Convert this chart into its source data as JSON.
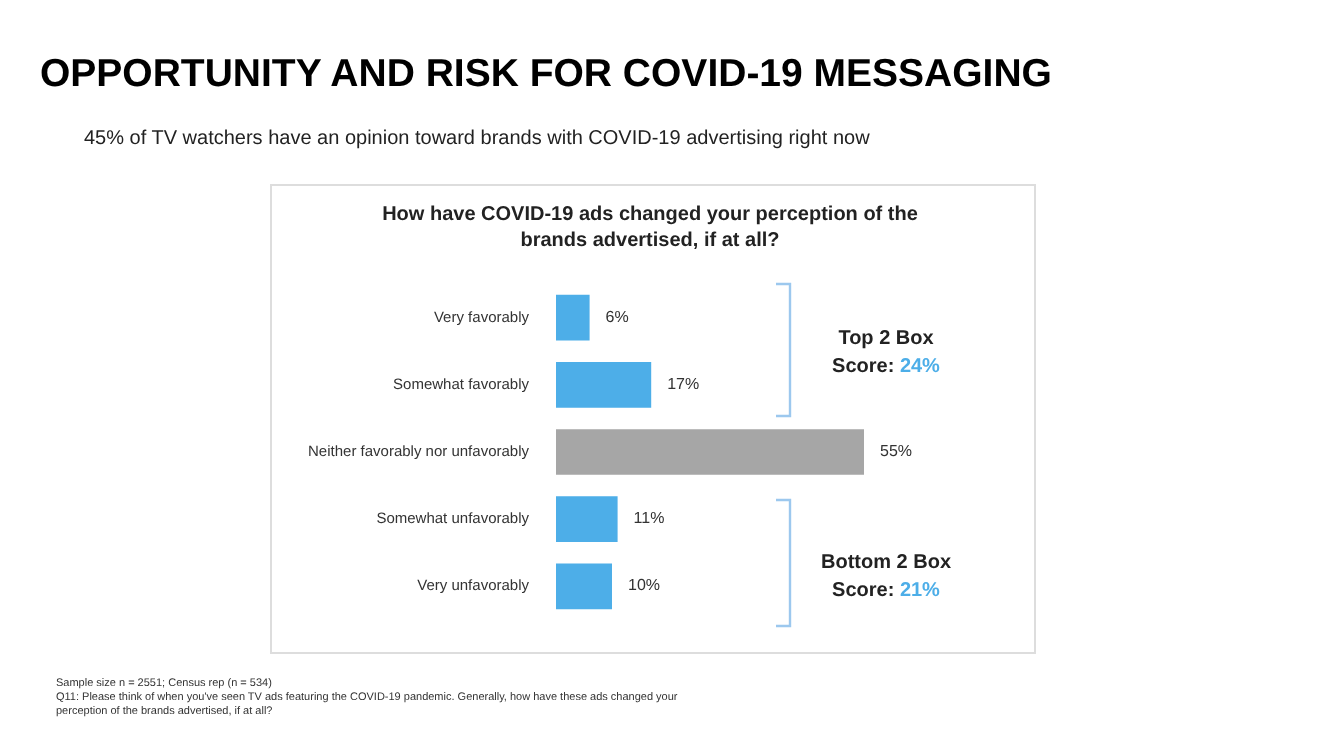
{
  "chart_data": {
    "type": "bar",
    "orientation": "horizontal",
    "title": "OPPORTUNITY AND RISK FOR COVID-19 MESSAGING",
    "subtitle": "45% of TV watchers have an opinion toward brands with COVID-19 advertising right now",
    "categories": [
      "Very favorably",
      "Somewhat favorably",
      "Neither favorably nor unfavorably",
      "Somewhat unfavorably",
      "Very unfavorably"
    ],
    "values": [
      6,
      17,
      55,
      11,
      10
    ],
    "colors": [
      "#4daee8",
      "#4daee8",
      "#a6a6a6",
      "#4daee8",
      "#4daee8"
    ],
    "value_labels": [
      "6%",
      "17%",
      "55%",
      "11%",
      "10%"
    ],
    "annotations": [
      "How have COVID-19 ads changed your perception of the brands advertised, if at all?",
      "Top 2 Box",
      "Score: 24%",
      "Bottom 2 Box",
      "Score: 21%",
      "Sample size n = 2551; Census rep (n = 534)",
      "Q11: Please think of when you've seen TV ads featuring the COVID-19 pandemic. Generally, how have these ads changed your perception of the brands advertised, if at all?"
    ]
  }
}
